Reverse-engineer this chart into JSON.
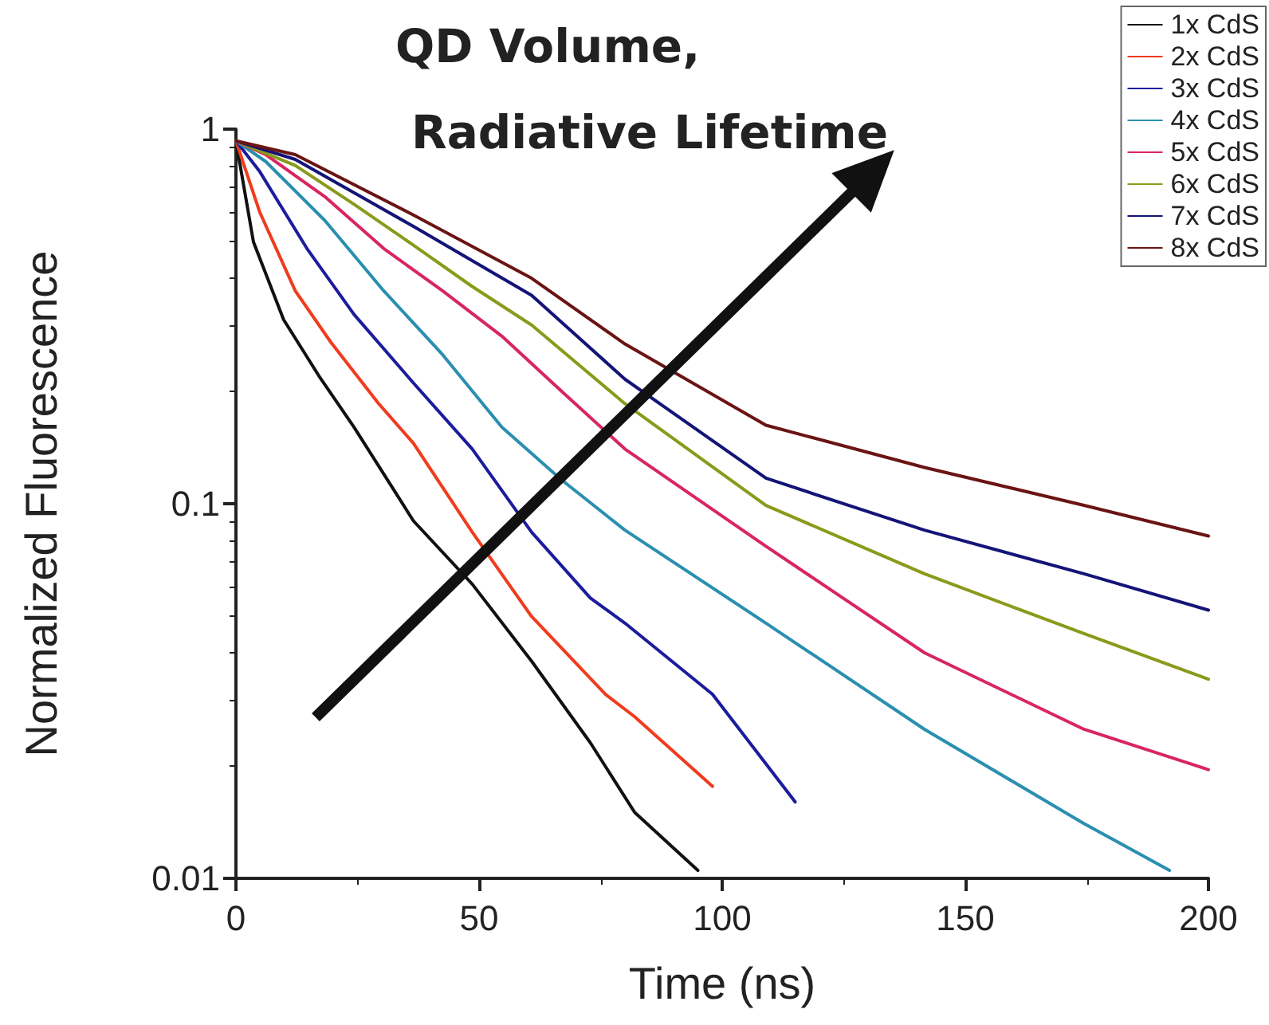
{
  "chart_data": {
    "type": "line",
    "xlabel": "Time (ns)",
    "ylabel": "Normalized Fluorescence",
    "annotations": [
      "QD Volume,",
      "Radiative Lifetime"
    ],
    "xlim": [
      0,
      200
    ],
    "xticks": [
      0,
      50,
      100,
      150,
      200
    ],
    "ylim": [
      0.01,
      1
    ],
    "yticks": [
      0.01,
      0.1,
      1
    ],
    "log": "y",
    "grid": false,
    "legend": "top right",
    "marker": "none",
    "line_style": "solid",
    "series": [
      {
        "name": "1x CdS",
        "color": "#111111",
        "x": [
          0,
          3.6,
          9.8,
          17,
          24.3,
          36.5,
          48.6,
          60.8,
          72.9,
          82,
          95
        ],
        "values": [
          0.93,
          0.5,
          0.31,
          0.22,
          0.16,
          0.09,
          0.061,
          0.038,
          0.023,
          0.015,
          0.0105
        ]
      },
      {
        "name": "2x CdS",
        "color": "#f03c1e",
        "x": [
          0,
          4.9,
          12.2,
          19.5,
          29.2,
          36.5,
          48.6,
          60.8,
          76,
          82,
          98
        ],
        "values": [
          0.93,
          0.6,
          0.37,
          0.27,
          0.186,
          0.145,
          0.084,
          0.05,
          0.031,
          0.027,
          0.0176
        ]
      },
      {
        "name": "3x CdS",
        "color": "#1c1c9c",
        "x": [
          0,
          4.9,
          14.6,
          24.3,
          36.5,
          48.6,
          60.8,
          72.9,
          80,
          98,
          115
        ],
        "values": [
          0.93,
          0.77,
          0.48,
          0.32,
          0.21,
          0.14,
          0.084,
          0.056,
          0.048,
          0.031,
          0.016
        ]
      },
      {
        "name": "4x CdS",
        "color": "#2a8fb0",
        "x": [
          0,
          6.1,
          18.3,
          30.4,
          42.5,
          54.7,
          66.9,
          80,
          109,
          141.6,
          174.4,
          192
        ],
        "values": [
          0.93,
          0.82,
          0.57,
          0.37,
          0.25,
          0.16,
          0.116,
          0.085,
          0.048,
          0.025,
          0.014,
          0.0105
        ]
      },
      {
        "name": "5x CdS",
        "color": "#d8265e",
        "x": [
          0,
          6.1,
          18.3,
          30.4,
          42.5,
          54.7,
          66.9,
          80,
          109,
          141.6,
          174.4,
          200
        ],
        "values": [
          0.93,
          0.855,
          0.66,
          0.48,
          0.37,
          0.28,
          0.2,
          0.14,
          0.077,
          0.04,
          0.025,
          0.0195
        ]
      },
      {
        "name": "6x CdS",
        "color": "#8a9a1a",
        "x": [
          0,
          12.2,
          24.3,
          36.5,
          48.6,
          60.8,
          80,
          109,
          141.6,
          174.4,
          200
        ],
        "values": [
          0.93,
          0.8,
          0.63,
          0.49,
          0.38,
          0.3,
          0.185,
          0.099,
          0.065,
          0.045,
          0.034
        ]
      },
      {
        "name": "7x CdS",
        "color": "#141478",
        "x": [
          0,
          12.2,
          36.5,
          60.8,
          80,
          109,
          141.6,
          174.4,
          200
        ],
        "values": [
          0.93,
          0.83,
          0.55,
          0.36,
          0.215,
          0.117,
          0.085,
          0.065,
          0.052
        ]
      },
      {
        "name": "8x CdS",
        "color": "#6b1414",
        "x": [
          0,
          12.2,
          36.5,
          60.8,
          80,
          109,
          141.6,
          174.4,
          200
        ],
        "values": [
          0.93,
          0.855,
          0.59,
          0.4,
          0.267,
          0.162,
          0.125,
          0.099,
          0.082
        ]
      }
    ]
  }
}
